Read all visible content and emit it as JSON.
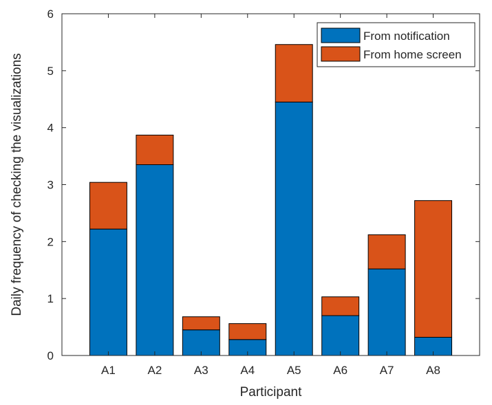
{
  "chart_data": {
    "type": "bar",
    "stacked": true,
    "title": "",
    "xlabel": "Participant",
    "ylabel": "Daily frequency of checking the visualizations",
    "categories": [
      "A1",
      "A2",
      "A3",
      "A4",
      "A5",
      "A6",
      "A7",
      "A8"
    ],
    "series": [
      {
        "name": "From notification",
        "color": "#0072BD",
        "values": [
          2.22,
          3.35,
          0.45,
          0.28,
          4.45,
          0.7,
          1.52,
          0.32
        ]
      },
      {
        "name": "From home screen",
        "color": "#D95319",
        "values": [
          0.82,
          0.52,
          0.23,
          0.28,
          1.01,
          0.33,
          0.6,
          2.4
        ]
      }
    ],
    "ylim": [
      0,
      6
    ],
    "yticks": [
      0,
      1,
      2,
      3,
      4,
      5,
      6
    ],
    "ytick_labels": [
      "0",
      "1",
      "2",
      "3",
      "4",
      "5",
      "6"
    ],
    "grid": false,
    "legend_position": "top-right"
  }
}
